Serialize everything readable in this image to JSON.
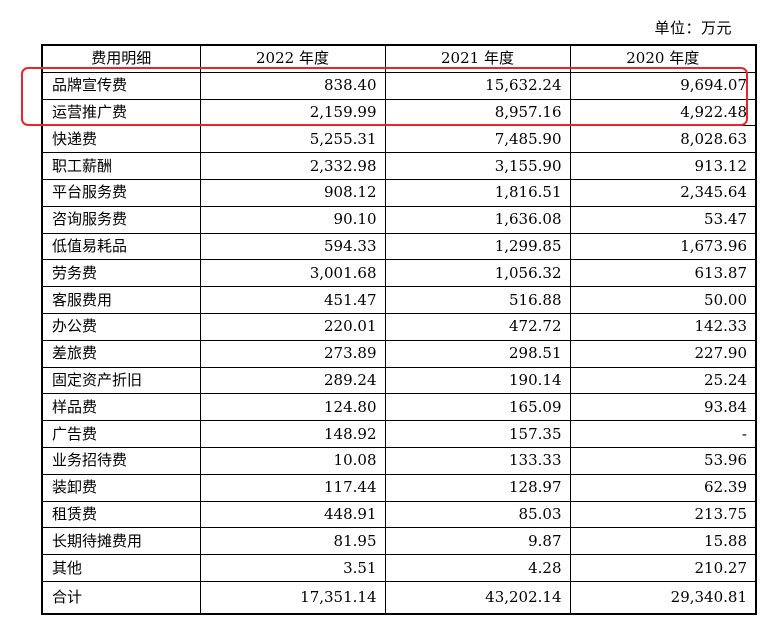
{
  "unit_label": "单位：万元",
  "table": {
    "headers": [
      "费用明细",
      "2022 年度",
      "2021 年度",
      "2020 年度"
    ],
    "rows": [
      {
        "label": "品牌宣传费",
        "v2022": "838.40",
        "v2021": "15,632.24",
        "v2020": "9,694.07"
      },
      {
        "label": "运营推广费",
        "v2022": "2,159.99",
        "v2021": "8,957.16",
        "v2020": "4,922.48"
      },
      {
        "label": "快递费",
        "v2022": "5,255.31",
        "v2021": "7,485.90",
        "v2020": "8,028.63"
      },
      {
        "label": "职工薪酬",
        "v2022": "2,332.98",
        "v2021": "3,155.90",
        "v2020": "913.12"
      },
      {
        "label": "平台服务费",
        "v2022": "908.12",
        "v2021": "1,816.51",
        "v2020": "2,345.64"
      },
      {
        "label": "咨询服务费",
        "v2022": "90.10",
        "v2021": "1,636.08",
        "v2020": "53.47"
      },
      {
        "label": "低值易耗品",
        "v2022": "594.33",
        "v2021": "1,299.85",
        "v2020": "1,673.96"
      },
      {
        "label": "劳务费",
        "v2022": "3,001.68",
        "v2021": "1,056.32",
        "v2020": "613.87"
      },
      {
        "label": "客服费用",
        "v2022": "451.47",
        "v2021": "516.88",
        "v2020": "50.00"
      },
      {
        "label": "办公费",
        "v2022": "220.01",
        "v2021": "472.72",
        "v2020": "142.33"
      },
      {
        "label": "差旅费",
        "v2022": "273.89",
        "v2021": "298.51",
        "v2020": "227.90"
      },
      {
        "label": "固定资产折旧",
        "v2022": "289.24",
        "v2021": "190.14",
        "v2020": "25.24"
      },
      {
        "label": "样品费",
        "v2022": "124.80",
        "v2021": "165.09",
        "v2020": "93.84"
      },
      {
        "label": "广告费",
        "v2022": "148.92",
        "v2021": "157.35",
        "v2020": "-"
      },
      {
        "label": "业务招待费",
        "v2022": "10.08",
        "v2021": "133.33",
        "v2020": "53.96"
      },
      {
        "label": "装卸费",
        "v2022": "117.44",
        "v2021": "128.97",
        "v2020": "62.39"
      },
      {
        "label": "租赁费",
        "v2022": "448.91",
        "v2021": "85.03",
        "v2020": "213.75"
      },
      {
        "label": "长期待摊费用",
        "v2022": "81.95",
        "v2021": "9.87",
        "v2020": "15.88"
      },
      {
        "label": "其他",
        "v2022": "3.51",
        "v2021": "4.28",
        "v2020": "210.27"
      }
    ],
    "total": {
      "label": "合计",
      "v2022": "17,351.14",
      "v2021": "43,202.14",
      "v2020": "29,340.81"
    }
  },
  "highlight": {
    "color": "#e8272a",
    "rows": [
      "品牌宣传费",
      "运营推广费"
    ]
  }
}
